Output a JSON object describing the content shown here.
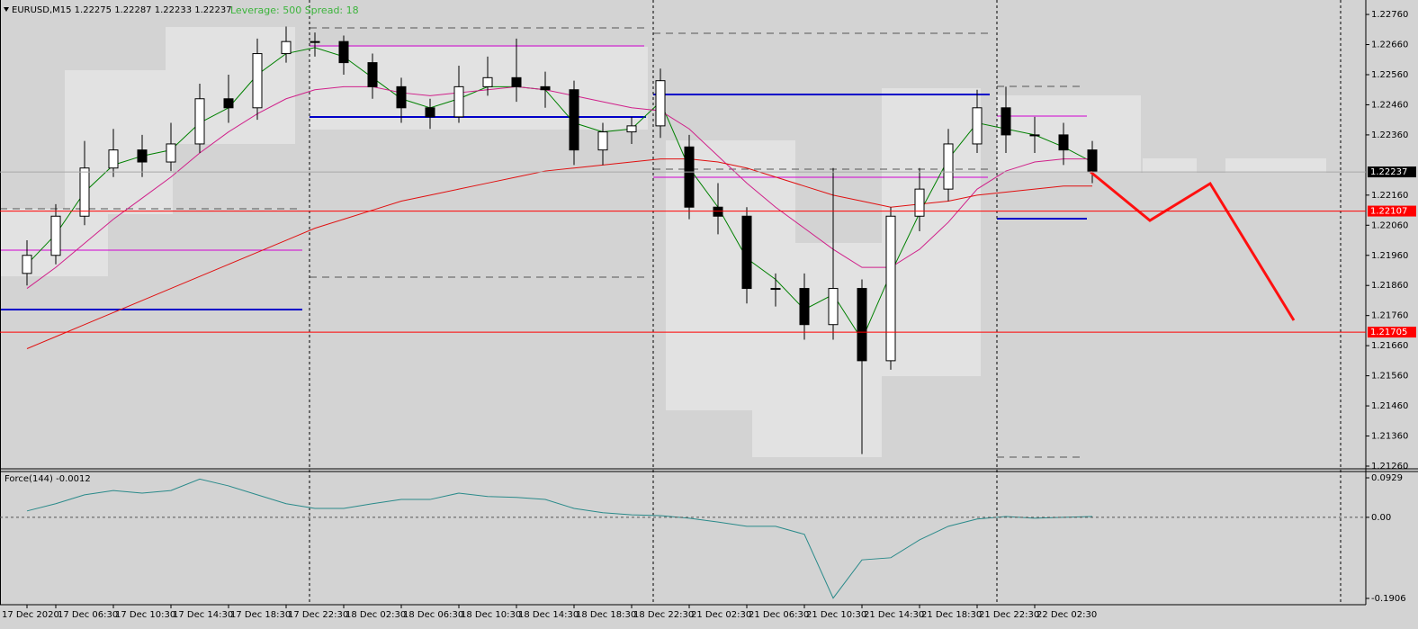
{
  "header": {
    "symbol": "EURUSD,M15  1.22275 1.22287 1.22233 1.22237",
    "account": "Leverage: 500 Spread: 18"
  },
  "chart_data": [
    {
      "type": "candlestick",
      "categories": [
        "17 Dec 2020",
        "17 Dec 06:30",
        null,
        "17 Dec 10:30",
        null,
        "17 Dec 14:30",
        null,
        "17 Dec 18:30",
        null,
        "17 Dec 22:30",
        null,
        "18 Dec 02:30",
        null,
        "18 Dec 06:30",
        null,
        "18 Dec 10:30",
        null,
        "18 Dec 14:30",
        null,
        "18 Dec 18:30",
        null,
        "18 Dec 22:30",
        null,
        "21 Dec 02:30",
        null,
        "21 Dec 06:30",
        null,
        "21 Dec 10:30",
        null,
        "21 Dec 14:30",
        null,
        "21 Dec 18:30",
        null,
        "21 Dec 22:30",
        null,
        "22 Dec 02:30",
        null,
        null
      ],
      "open": [
        1.219,
        1.2196,
        1.2209,
        1.2225,
        1.2231,
        1.2227,
        1.2233,
        1.2248,
        1.2245,
        1.2263,
        1.2267,
        1.2267,
        1.226,
        1.2252,
        1.2245,
        1.2242,
        1.2252,
        1.2255,
        1.2252,
        1.2251,
        1.2231,
        1.2237,
        1.2239,
        1.2232,
        1.2212,
        1.2209,
        1.2185,
        1.2185,
        1.2173,
        1.2185,
        1.2161,
        1.2209,
        1.2218,
        1.2233,
        1.2245,
        1.2236,
        1.2236,
        1.2231
      ],
      "high": [
        1.2201,
        1.2213,
        1.2234,
        1.2238,
        1.2236,
        1.224,
        1.2253,
        1.2256,
        1.2268,
        1.2272,
        1.227,
        1.2269,
        1.2263,
        1.2255,
        1.2248,
        1.2259,
        1.2262,
        1.2268,
        1.2257,
        1.2254,
        1.224,
        1.2242,
        1.2258,
        1.2236,
        1.222,
        1.2212,
        1.219,
        1.219,
        1.2225,
        1.2188,
        1.2212,
        1.2225,
        1.2238,
        1.2251,
        1.2252,
        1.2242,
        1.224,
        1.2234
      ],
      "low": [
        1.2186,
        1.2193,
        1.2206,
        1.2222,
        1.2222,
        1.2224,
        1.223,
        1.224,
        1.2241,
        1.226,
        1.2262,
        1.2256,
        1.2248,
        1.224,
        1.2238,
        1.224,
        1.2249,
        1.2247,
        1.2245,
        1.2226,
        1.2226,
        1.2233,
        1.2235,
        1.2208,
        1.2203,
        1.218,
        1.2179,
        1.2168,
        1.2168,
        1.213,
        1.2158,
        1.2204,
        1.2214,
        1.223,
        1.223,
        1.223,
        1.2226,
        1.222
      ],
      "close": [
        1.2196,
        1.2209,
        1.2225,
        1.2231,
        1.2227,
        1.2233,
        1.2248,
        1.2245,
        1.2263,
        1.2267,
        1.2267,
        1.226,
        1.2252,
        1.2245,
        1.2242,
        1.2252,
        1.2255,
        1.2252,
        1.2251,
        1.2231,
        1.2237,
        1.2239,
        1.2254,
        1.2212,
        1.2209,
        1.2185,
        1.2185,
        1.2173,
        1.2185,
        1.2161,
        1.2209,
        1.2218,
        1.2233,
        1.2245,
        1.2236,
        1.2236,
        1.2231,
        1.22237
      ],
      "series": [
        {
          "color": "#008000",
          "values": [
            1.2193,
            1.2203,
            1.2217,
            1.2226,
            1.2229,
            1.2231,
            1.224,
            1.2245,
            1.2256,
            1.2263,
            1.2265,
            1.2262,
            1.2255,
            1.2248,
            1.2245,
            1.2248,
            1.2252,
            1.2252,
            1.2251,
            1.224,
            1.2237,
            1.2238,
            1.2247,
            1.2225,
            1.2212,
            1.2195,
            1.2188,
            1.2178,
            1.2183,
            1.2168,
            1.219,
            1.221,
            1.2228,
            1.224,
            1.2238,
            1.2236,
            1.2232,
            1.2227
          ]
        },
        {
          "color": "#d0208a",
          "values": [
            1.2185,
            1.2192,
            1.22,
            1.2208,
            1.2215,
            1.2222,
            1.223,
            1.2237,
            1.2243,
            1.2248,
            1.2251,
            1.2252,
            1.2252,
            1.225,
            1.2249,
            1.225,
            1.2251,
            1.2252,
            1.2251,
            1.2249,
            1.2247,
            1.2245,
            1.2244,
            1.2238,
            1.2229,
            1.222,
            1.2212,
            1.2205,
            1.2198,
            1.2192,
            1.2192,
            1.2198,
            1.2207,
            1.2218,
            1.2224,
            1.2227,
            1.2228,
            1.2228
          ]
        },
        {
          "color": "#e01010",
          "values": [
            1.2165,
            1.2169,
            1.2173,
            1.2177,
            1.2181,
            1.2185,
            1.2189,
            1.2193,
            1.2197,
            1.2201,
            1.2205,
            1.2208,
            1.2211,
            1.2214,
            1.2216,
            1.2218,
            1.222,
            1.2222,
            1.2224,
            1.2225,
            1.2226,
            1.2227,
            1.2228,
            1.2228,
            1.2227,
            1.2225,
            1.2222,
            1.2219,
            1.2216,
            1.2214,
            1.2212,
            1.2213,
            1.2214,
            1.2216,
            1.2217,
            1.2218,
            1.2219,
            1.2219
          ]
        }
      ],
      "levels": [
        {
          "value": 1.22107,
          "color": "#ff0000"
        },
        {
          "value": 1.21705,
          "color": "#ff0000"
        }
      ],
      "last_price": 1.22237,
      "ylim": [
        1.21251,
        1.22808
      ],
      "yticks": [
        {
          "value": 1.2276,
          "label": "1.22760"
        },
        {
          "value": 1.2266,
          "label": "1.22660"
        },
        {
          "value": 1.2256,
          "label": "1.22560"
        },
        {
          "value": 1.2246,
          "label": "1.22460"
        },
        {
          "value": 1.2236,
          "label": "1.22360"
        },
        {
          "value": 1.2216,
          "label": "1.22160"
        },
        {
          "value": 1.2206,
          "label": "1.22060"
        },
        {
          "value": 1.2196,
          "label": "1.21960"
        },
        {
          "value": 1.2186,
          "label": "1.21860"
        },
        {
          "value": 1.2176,
          "label": "1.21760"
        },
        {
          "value": 1.2166,
          "label": "1.21660"
        },
        {
          "value": 1.2156,
          "label": "1.21560"
        },
        {
          "value": 1.2146,
          "label": "1.21460"
        },
        {
          "value": 1.2136,
          "label": "1.21360"
        },
        {
          "value": 1.2126,
          "label": "1.21260"
        }
      ]
    },
    {
      "type": "line",
      "title": "Force(144) -0.0012",
      "series": [
        {
          "color": "#2a8a8a",
          "values": [
            0.015,
            0.032,
            0.053,
            0.063,
            0.057,
            0.063,
            0.09,
            0.074,
            0.053,
            0.032,
            0.021,
            0.021,
            0.032,
            0.042,
            0.042,
            0.057,
            0.049,
            0.047,
            0.042,
            0.021,
            0.011,
            0.006,
            0.004,
            -0.002,
            -0.011,
            -0.021,
            -0.021,
            -0.04,
            -0.19,
            -0.1,
            -0.095,
            -0.053,
            -0.021,
            -0.004,
            0.002,
            -0.002,
            0,
            0.002
          ]
        }
      ],
      "ylim": [
        -0.2054,
        0.1077
      ],
      "yticks": [
        0.0929,
        {
          "value": 0,
          "label": "0.00"
        },
        -0.1906
      ]
    }
  ]
}
